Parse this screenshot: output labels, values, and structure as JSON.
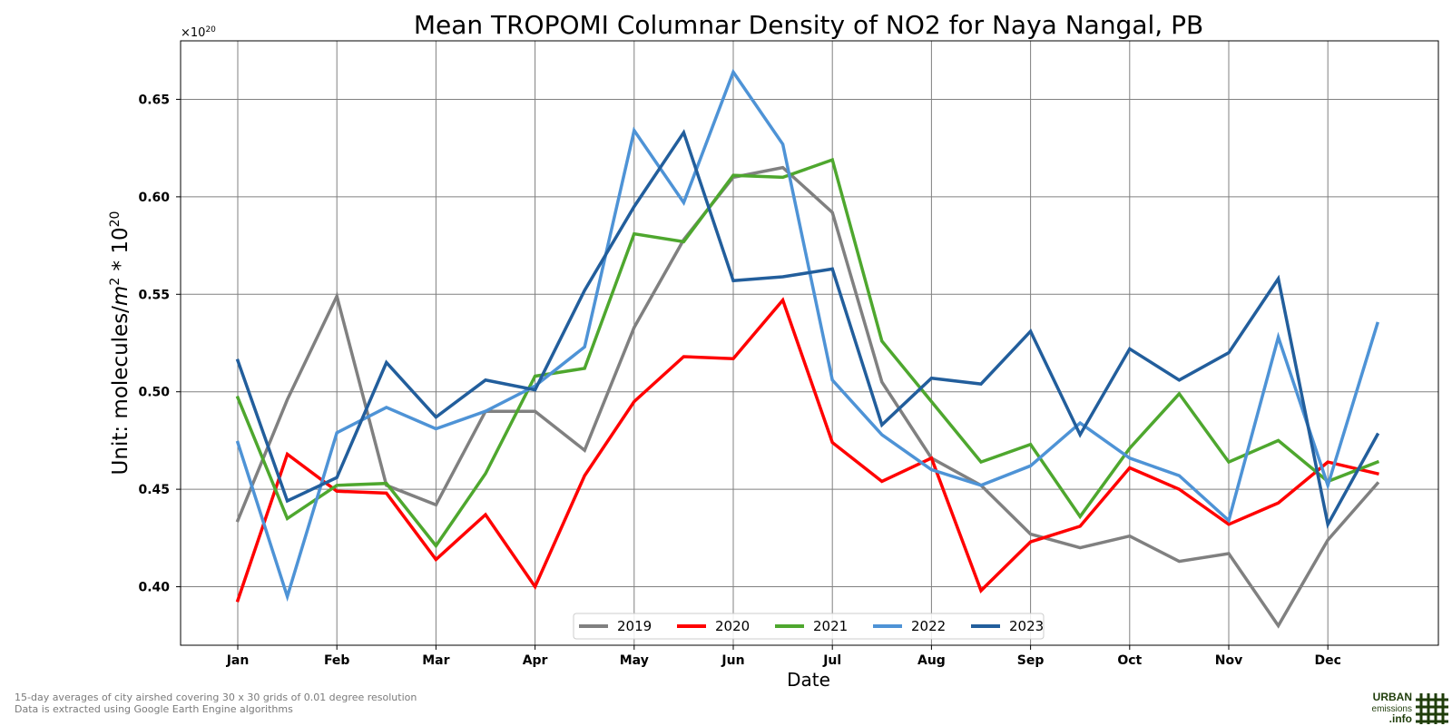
{
  "chart_data": {
    "type": "line",
    "title": "Mean TROPOMI Columnar Density of NO2 for Naya Nangal, PB",
    "xlabel": "Date",
    "ylabel_text": "Unit: molecules/",
    "ylabel_unit": "m",
    "ylabel_unit_exp": "2",
    "ylabel_suffix": " * 10",
    "ylabel_suffix_exp": "20",
    "multiplier_base": "×10",
    "multiplier_exp": "20",
    "ylim": [
      0.37,
      0.68
    ],
    "yticks": [
      0.4,
      0.45,
      0.5,
      0.55,
      0.6,
      0.65
    ],
    "ytick_labels": [
      "0.40",
      "0.45",
      "0.50",
      "0.55",
      "0.60",
      "0.65"
    ],
    "month_labels": [
      "Jan",
      "Feb",
      "Mar",
      "Apr",
      "May",
      "Jun",
      "Jul",
      "Aug",
      "Sep",
      "Oct",
      "Nov",
      "Dec"
    ],
    "grid": true,
    "legend_position": "bottom-center",
    "x": [
      "Jan 1",
      "Jan 16",
      "Feb 1",
      "Feb 16",
      "Mar 1",
      "Mar 16",
      "Apr 1",
      "Apr 16",
      "May 1",
      "May 16",
      "Jun 1",
      "Jun 16",
      "Jul 1",
      "Jul 16",
      "Aug 1",
      "Aug 16",
      "Sep 1",
      "Sep 16",
      "Oct 1",
      "Oct 16",
      "Nov 1",
      "Nov 16",
      "Dec 1",
      "Dec 16"
    ],
    "series": [
      {
        "name": "2019",
        "color": "#808080",
        "values": [
          0.434,
          0.496,
          0.549,
          0.452,
          0.442,
          0.49,
          0.49,
          0.47,
          0.533,
          0.578,
          0.61,
          0.615,
          0.592,
          0.505,
          0.466,
          0.452,
          0.427,
          0.42,
          0.426,
          0.413,
          0.417,
          0.38,
          0.424,
          0.453
        ]
      },
      {
        "name": "2020",
        "color": "#ff0000",
        "values": [
          0.393,
          0.468,
          0.449,
          0.448,
          0.414,
          0.437,
          0.4,
          0.457,
          0.495,
          0.518,
          0.517,
          0.547,
          0.474,
          0.454,
          0.466,
          0.398,
          0.423,
          0.431,
          0.461,
          0.45,
          0.432,
          0.443,
          0.464,
          0.458
        ]
      },
      {
        "name": "2021",
        "color": "#4ea72e",
        "values": [
          0.497,
          0.435,
          0.452,
          0.453,
          0.421,
          0.458,
          0.508,
          0.512,
          0.581,
          0.577,
          0.611,
          0.61,
          0.619,
          0.526,
          0.495,
          0.464,
          0.473,
          0.436,
          0.471,
          0.499,
          0.464,
          0.475,
          0.454,
          0.464
        ]
      },
      {
        "name": "2022",
        "color": "#4e93d6",
        "values": [
          0.474,
          0.395,
          0.479,
          0.492,
          0.481,
          0.49,
          0.503,
          0.523,
          0.634,
          0.597,
          0.664,
          0.627,
          0.506,
          0.478,
          0.46,
          0.452,
          0.462,
          0.484,
          0.466,
          0.457,
          0.434,
          0.528,
          0.452,
          0.535
        ]
      },
      {
        "name": "2023",
        "color": "#225e9c",
        "values": [
          0.516,
          0.444,
          0.456,
          0.515,
          0.487,
          0.506,
          0.501,
          0.552,
          0.595,
          0.633,
          0.557,
          0.559,
          0.563,
          0.483,
          0.507,
          0.504,
          0.531,
          0.478,
          0.522,
          0.506,
          0.52,
          0.558,
          0.432,
          0.478
        ]
      }
    ]
  },
  "footnote": {
    "line1": "15-day averages of city airshed covering 30 x 30 grids of 0.01 degree resolution",
    "line2": "Data is extracted using Google Earth Engine algorithms"
  },
  "logo": {
    "line1": "URBAN",
    "line2": "emissions",
    "line3": ".info",
    "color": "#1f3d0a"
  }
}
